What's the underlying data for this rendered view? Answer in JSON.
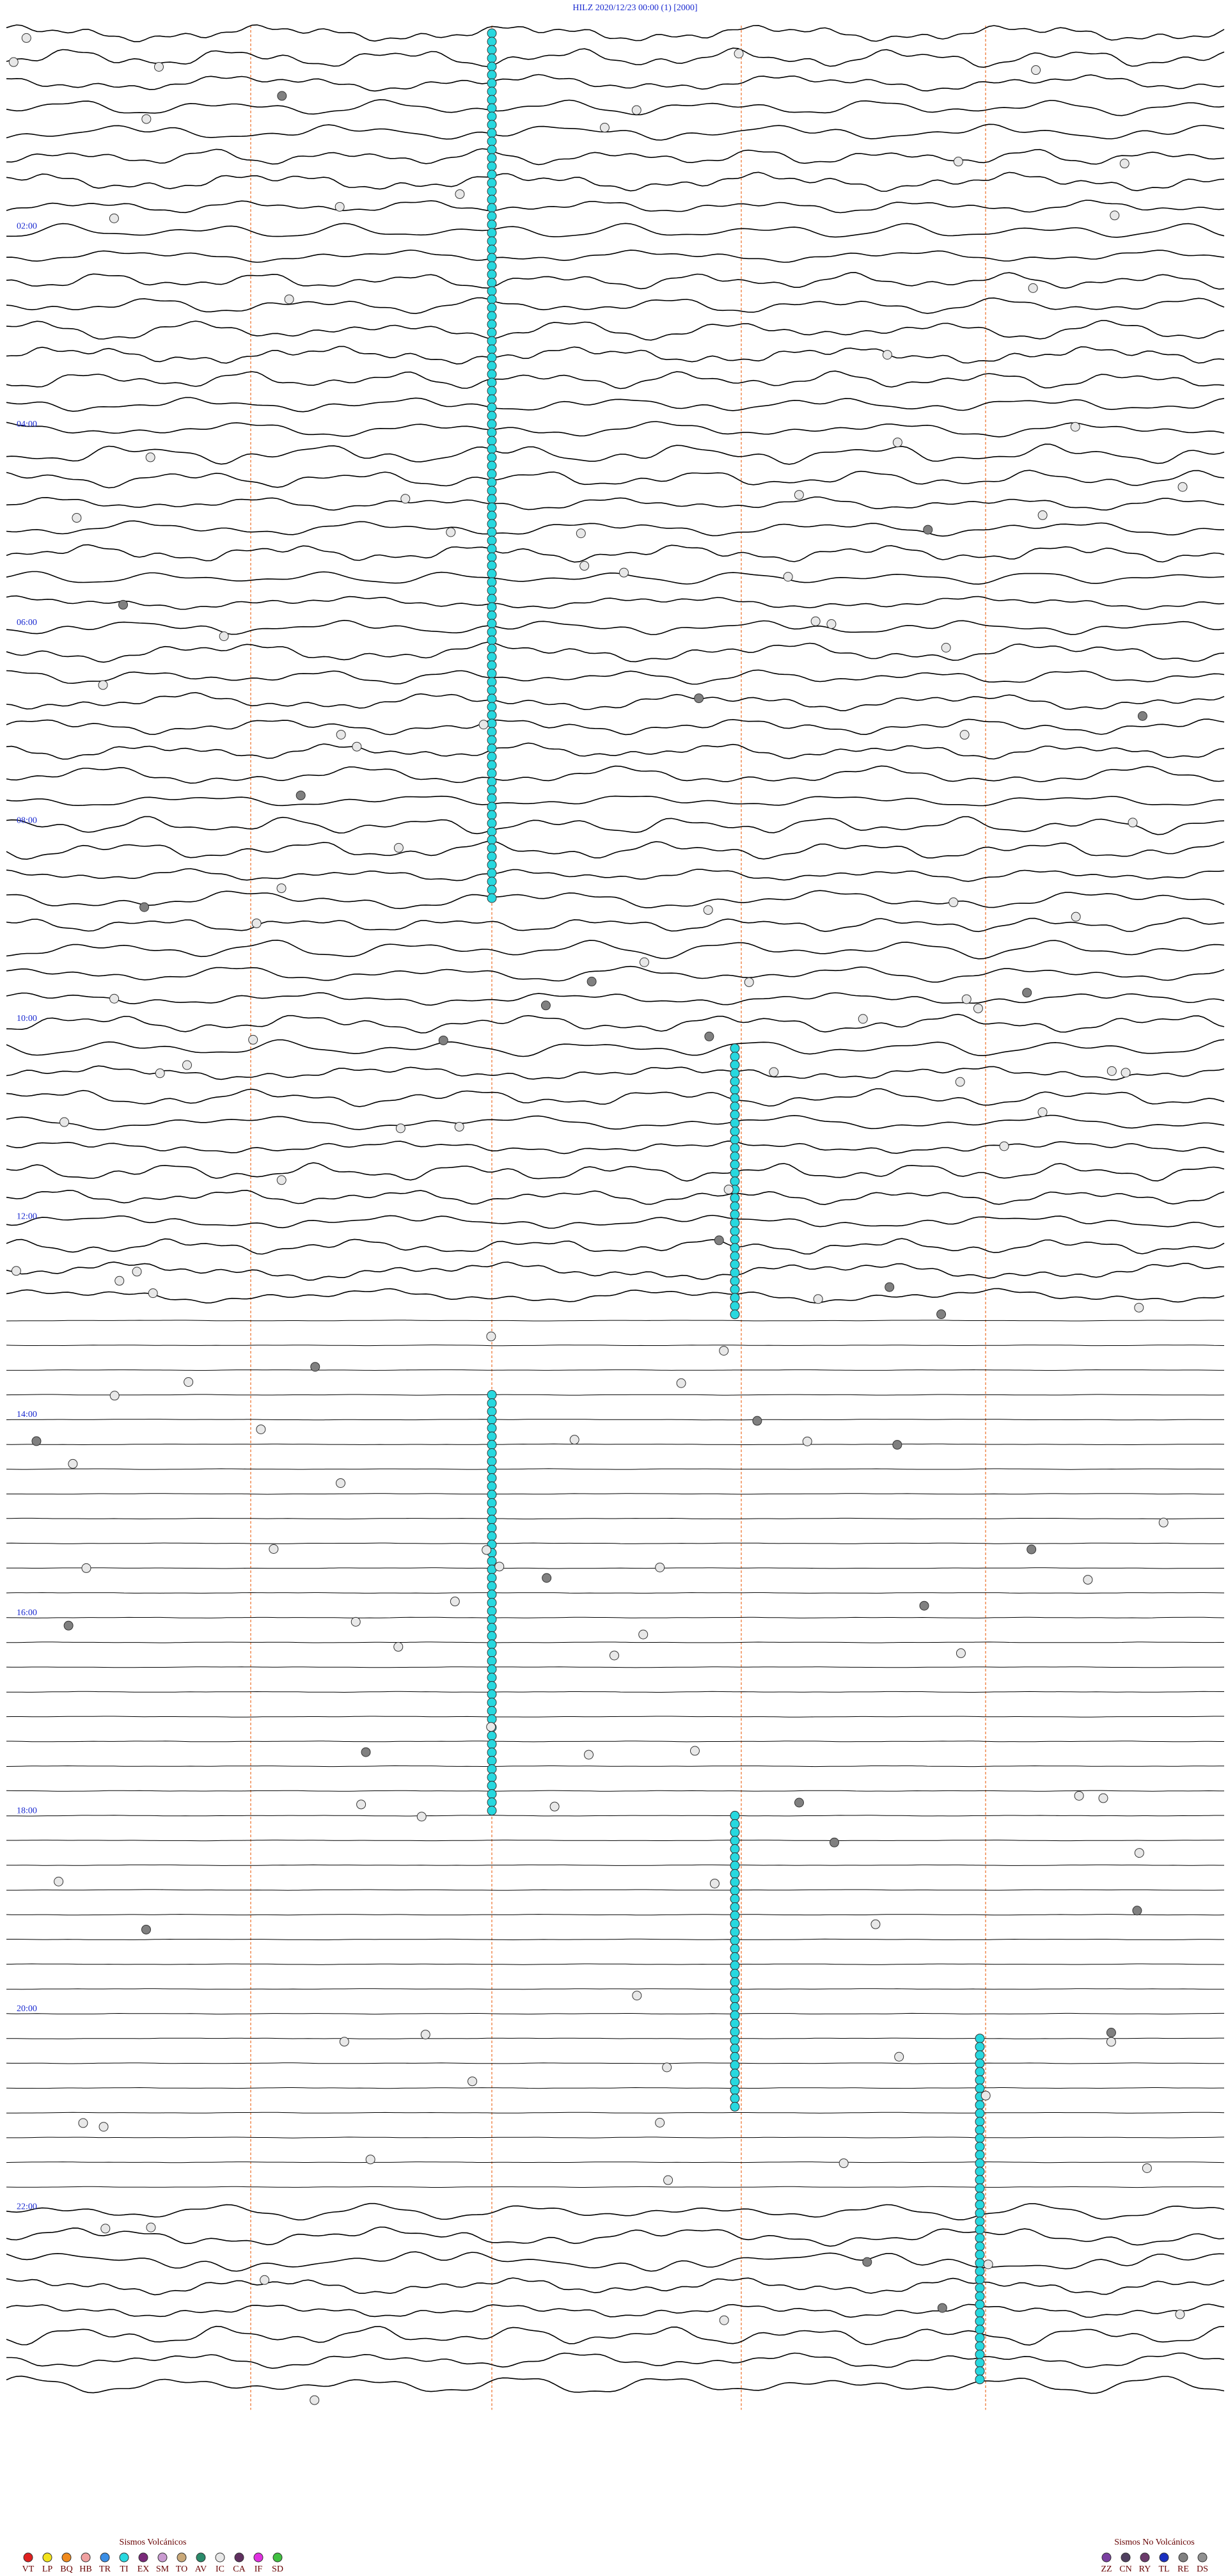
{
  "header": {
    "title": "HILZ    2020/12/23 00:00     (1)    [2000]"
  },
  "time_labels": [
    "02:00",
    "04:00",
    "06:00",
    "08:00",
    "10:00",
    "12:00",
    "14:00",
    "16:00",
    "18:00",
    "20:00",
    "22:00"
  ],
  "legend_volcanic": {
    "title": "Sismos Volcánicos",
    "items": [
      {
        "code": "VT",
        "color": "#e0201f"
      },
      {
        "code": "LP",
        "color": "#f2e21c"
      },
      {
        "code": "BQ",
        "color": "#f08a1c"
      },
      {
        "code": "HB",
        "color": "#f0a0a0"
      },
      {
        "code": "TR",
        "color": "#3a8ee6"
      },
      {
        "code": "TI",
        "color": "#27d8df"
      },
      {
        "code": "EX",
        "color": "#7a2a7a"
      },
      {
        "code": "SM",
        "color": "#c99ad0"
      },
      {
        "code": "TO",
        "color": "#c9a878"
      },
      {
        "code": "AV",
        "color": "#2a8a6a"
      },
      {
        "code": "IC",
        "color": "#e8e8e8"
      },
      {
        "code": "CA",
        "color": "#603060"
      },
      {
        "code": "IF",
        "color": "#e030e0"
      },
      {
        "code": "SD",
        "color": "#40c040"
      }
    ]
  },
  "legend_non_volcanic": {
    "title": "Sismos No Volcánicos",
    "items": [
      {
        "code": "ZZ",
        "color": "#7a3fa0"
      },
      {
        "code": "CN",
        "color": "#504060"
      },
      {
        "code": "RY",
        "color": "#6a3a6a"
      },
      {
        "code": "TL",
        "color": "#1a30c0"
      },
      {
        "code": "RE",
        "color": "#808080"
      },
      {
        "code": "DS",
        "color": "#909090"
      }
    ]
  }
}
